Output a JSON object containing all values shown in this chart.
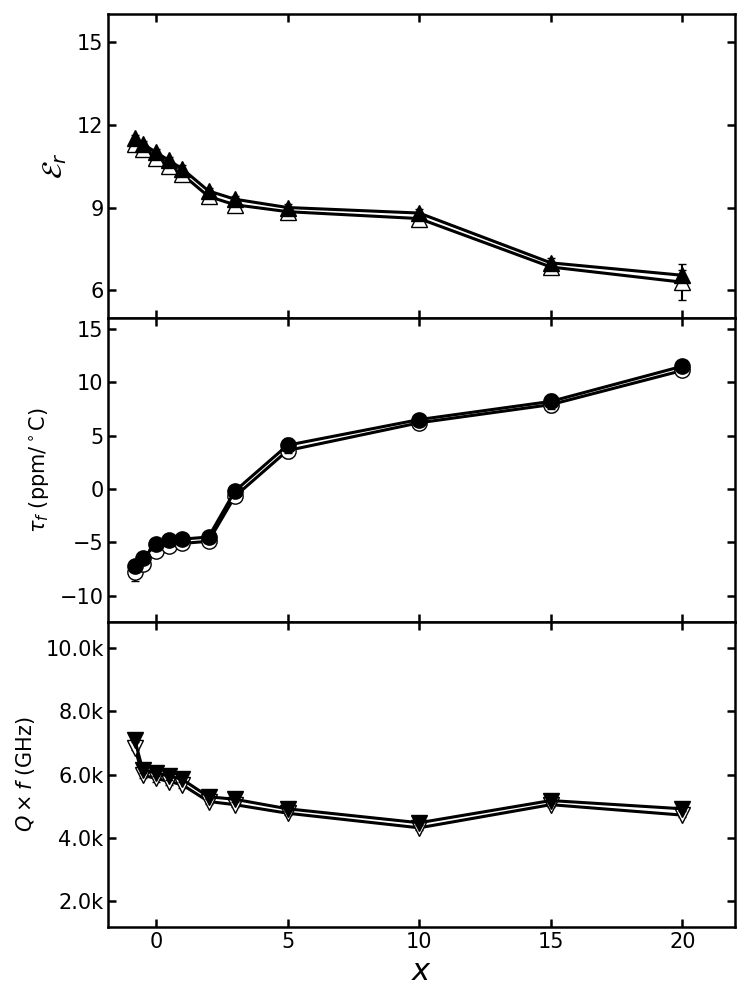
{
  "panel1": {
    "ylabel": "$\\mathcal{E}_r$",
    "ylim": [
      5.0,
      16.0
    ],
    "yticks": [
      6,
      9,
      12,
      15
    ],
    "s1_x": [
      -0.8,
      -0.5,
      0.0,
      0.5,
      1.0,
      2.0,
      3.0,
      5.0,
      10.0,
      15.0,
      20.0
    ],
    "s1_y": [
      11.5,
      11.3,
      11.0,
      10.7,
      10.4,
      9.6,
      9.3,
      9.0,
      8.8,
      7.0,
      6.55
    ],
    "s1_yerr": [
      0.12,
      0.12,
      0.12,
      0.12,
      0.12,
      0.12,
      0.12,
      0.12,
      0.15,
      0.18,
      0.18
    ],
    "s2_x": [
      -0.8,
      -0.5,
      0.0,
      0.5,
      1.0,
      2.0,
      3.0,
      5.0,
      10.0,
      15.0,
      20.0
    ],
    "s2_y": [
      11.3,
      11.1,
      10.8,
      10.5,
      10.2,
      9.4,
      9.1,
      8.85,
      8.6,
      6.85,
      6.3
    ],
    "s2_yerr": [
      0.12,
      0.12,
      0.12,
      0.12,
      0.12,
      0.12,
      0.12,
      0.12,
      0.15,
      0.18,
      0.65
    ]
  },
  "panel2": {
    "ylabel": "$\\tau_f$ (ppm/$^\\circ$C)",
    "ylim": [
      -12.5,
      16.0
    ],
    "yticks": [
      -10,
      -5,
      0,
      5,
      10,
      15
    ],
    "s1_x": [
      -0.8,
      -0.5,
      0.0,
      0.5,
      1.0,
      2.0,
      3.0,
      5.0,
      10.0,
      15.0,
      20.0
    ],
    "s1_y": [
      -7.2,
      -6.5,
      -5.2,
      -4.8,
      -4.7,
      -4.5,
      -0.2,
      4.1,
      6.5,
      8.2,
      11.5
    ],
    "s1_yerr": [
      0.4,
      0.3,
      0.3,
      0.25,
      0.25,
      0.35,
      0.5,
      0.7,
      0.5,
      0.7,
      0.45
    ],
    "s2_x": [
      -0.8,
      -0.5,
      0.0,
      0.5,
      1.0,
      2.0,
      3.0,
      5.0,
      10.0,
      15.0,
      20.0
    ],
    "s2_y": [
      -7.8,
      -7.0,
      -5.8,
      -5.3,
      -5.1,
      -4.9,
      -0.7,
      3.6,
      6.2,
      7.9,
      11.1
    ],
    "s2_yerr": [
      0.8,
      0.4,
      0.3,
      0.25,
      0.25,
      0.35,
      0.5,
      0.7,
      0.5,
      0.7,
      0.45
    ]
  },
  "panel3": {
    "ylabel": "$Q\\times f$ (GHz)",
    "ylim": [
      1200,
      10800
    ],
    "yticks": [
      2000,
      4000,
      6000,
      8000,
      10000
    ],
    "yticklabels": [
      "2.0k",
      "4.0k",
      "6.0k",
      "8.0k",
      "10.0k"
    ],
    "s1_x": [
      -0.8,
      -0.5,
      0.0,
      0.5,
      1.0,
      2.0,
      3.0,
      5.0,
      10.0,
      15.0,
      20.0
    ],
    "s1_y": [
      7100,
      6150,
      6050,
      5950,
      5850,
      5300,
      5220,
      4920,
      4480,
      5180,
      4920
    ],
    "s1_yerr": [
      80,
      90,
      100,
      120,
      100,
      80,
      80,
      70,
      70,
      70,
      70
    ],
    "s2_x": [
      -0.8,
      -0.5,
      0.0,
      0.5,
      1.0,
      2.0,
      3.0,
      5.0,
      10.0,
      15.0,
      20.0
    ],
    "s2_y": [
      6850,
      5980,
      5880,
      5780,
      5680,
      5150,
      5050,
      4780,
      4320,
      5050,
      4720
    ],
    "s2_yerr": [
      80,
      90,
      100,
      120,
      100,
      80,
      80,
      70,
      70,
      70,
      70
    ]
  },
  "xlim": [
    -1.8,
    22.0
  ],
  "xticks": [
    0,
    5,
    10,
    15,
    20
  ],
  "xlabel": "$x$",
  "lw": 2.2,
  "ms": 11,
  "capsize": 3,
  "elw": 1.5
}
